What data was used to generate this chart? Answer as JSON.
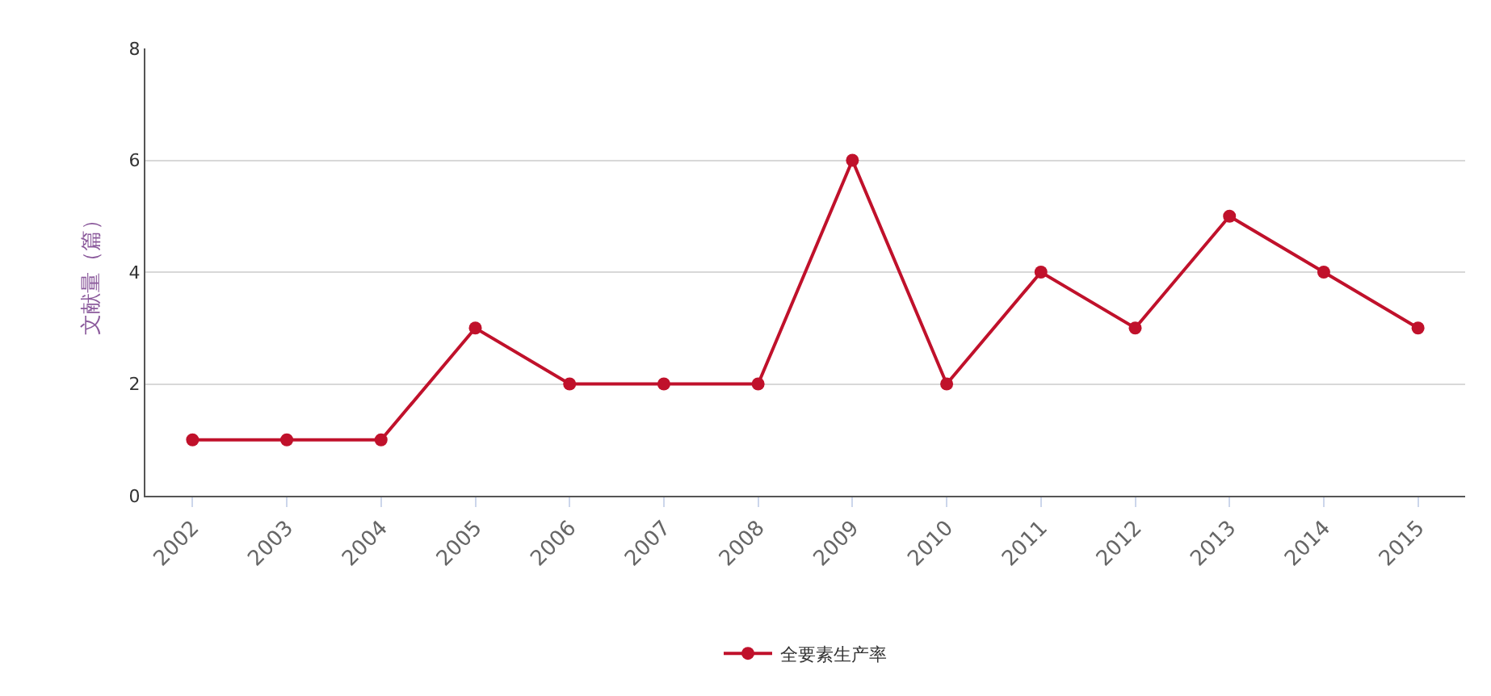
{
  "chart_data": {
    "type": "line",
    "ylabel": "文献量（篇）",
    "categories": [
      "2002",
      "2003",
      "2004",
      "2005",
      "2006",
      "2007",
      "2008",
      "2009",
      "2010",
      "2011",
      "2012",
      "2013",
      "2014",
      "2015"
    ],
    "series": [
      {
        "name": "全要素生产率",
        "color": "#c0112b",
        "values": [
          1,
          1,
          1,
          3,
          2,
          2,
          2,
          6,
          2,
          4,
          3,
          5,
          4,
          3
        ]
      }
    ],
    "ylim": [
      0,
      8
    ],
    "yticks": [
      0,
      2,
      4,
      6,
      8
    ],
    "grid": "y",
    "legend": "bottom",
    "marker": "circle",
    "line_style": "solid"
  }
}
